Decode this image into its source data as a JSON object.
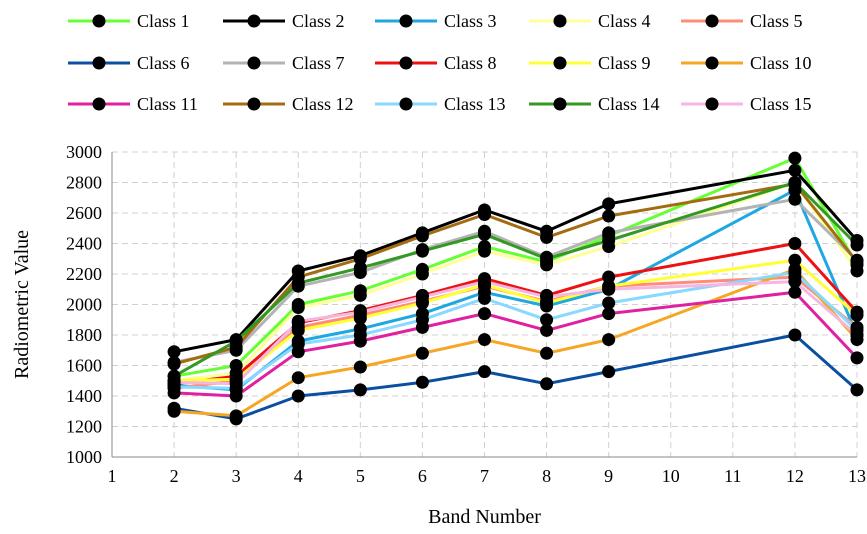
{
  "chart_data": {
    "type": "line",
    "xlabel": "Band Number",
    "ylabel": "Radiometric Value",
    "xlim": [
      1,
      13
    ],
    "ylim": [
      1000,
      3000
    ],
    "xticks": [
      1,
      2,
      3,
      4,
      5,
      6,
      7,
      8,
      9,
      10,
      11,
      12,
      13
    ],
    "yticks": [
      1000,
      1200,
      1400,
      1600,
      1800,
      2000,
      2200,
      2400,
      2600,
      2800,
      3000
    ],
    "grid": true,
    "legend_position": "top",
    "x": [
      2,
      3,
      4,
      5,
      6,
      7,
      8,
      9,
      12,
      13
    ],
    "series": [
      {
        "name": "Class 1",
        "color": "#66ff33",
        "values": [
          1530,
          1600,
          2000,
          2090,
          2230,
          2380,
          2280,
          2450,
          2960,
          2260
        ]
      },
      {
        "name": "Class 2",
        "color": "#000000",
        "values": [
          1690,
          1770,
          2220,
          2320,
          2470,
          2620,
          2480,
          2660,
          2880,
          2420
        ]
      },
      {
        "name": "Class 3",
        "color": "#1fa7e0",
        "values": [
          1470,
          1440,
          1760,
          1840,
          1940,
          2080,
          1990,
          2100,
          2750,
          1800
        ]
      },
      {
        "name": "Class 4",
        "color": "#ffff99",
        "values": [
          1500,
          1550,
          1980,
          2060,
          2200,
          2350,
          2260,
          2380,
          2800,
          2220
        ]
      },
      {
        "name": "Class 5",
        "color": "#ff8c7a",
        "values": [
          1450,
          1500,
          1850,
          1930,
          2020,
          2120,
          2020,
          2120,
          2180,
          1850
        ]
      },
      {
        "name": "Class 6",
        "color": "#0b4fa0",
        "values": [
          1320,
          1250,
          1400,
          1440,
          1490,
          1560,
          1480,
          1560,
          1800,
          1440
        ]
      },
      {
        "name": "Class 7",
        "color": "#b3b3b3",
        "values": [
          1620,
          1700,
          2120,
          2210,
          2360,
          2480,
          2310,
          2470,
          2690,
          2290
        ]
      },
      {
        "name": "Class 8",
        "color": "#ee1111",
        "values": [
          1480,
          1530,
          1880,
          1960,
          2060,
          2170,
          2060,
          2180,
          2400,
          1950
        ]
      },
      {
        "name": "Class 9",
        "color": "#ffff33",
        "values": [
          1500,
          1510,
          1830,
          1910,
          2010,
          2130,
          2010,
          2120,
          2290,
          1930
        ]
      },
      {
        "name": "Class 10",
        "color": "#f5a623",
        "values": [
          1300,
          1270,
          1520,
          1590,
          1680,
          1770,
          1680,
          1770,
          2230,
          1770
        ]
      },
      {
        "name": "Class 11",
        "color": "#e020a0",
        "values": [
          1420,
          1400,
          1690,
          1760,
          1850,
          1940,
          1830,
          1940,
          2080,
          1650
        ]
      },
      {
        "name": "Class 12",
        "color": "#a46b10",
        "values": [
          1610,
          1720,
          2180,
          2300,
          2450,
          2590,
          2440,
          2580,
          2790,
          2280
        ]
      },
      {
        "name": "Class 13",
        "color": "#88d8ff",
        "values": [
          1460,
          1450,
          1740,
          1800,
          1900,
          2040,
          1900,
          2010,
          2210,
          1830
        ]
      },
      {
        "name": "Class 14",
        "color": "#339922",
        "values": [
          1530,
          1760,
          2140,
          2240,
          2350,
          2460,
          2300,
          2420,
          2800,
          2390
        ]
      },
      {
        "name": "Class 15",
        "color": "#f5b7e0",
        "values": [
          1490,
          1480,
          1890,
          1950,
          2050,
          2150,
          2050,
          2100,
          2150,
          1800
        ]
      }
    ]
  }
}
